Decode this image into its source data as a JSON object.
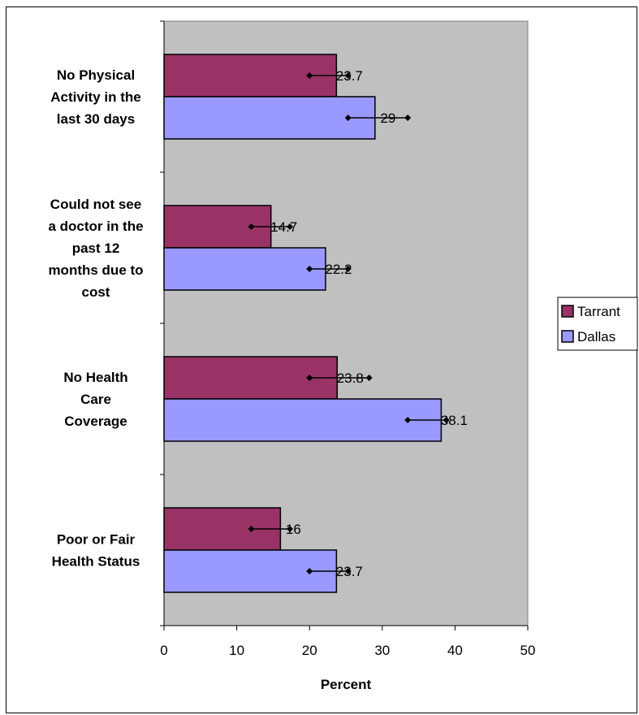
{
  "chart_data": {
    "type": "bar",
    "orientation": "horizontal",
    "categories": [
      [
        "No Physical",
        "Activity in the",
        "last 30 days"
      ],
      [
        "Could not see",
        "a doctor in the",
        "past 12",
        "months due to",
        "cost"
      ],
      [
        "No Health",
        "Care",
        "Coverage"
      ],
      [
        "Poor or Fair",
        "Health Status"
      ]
    ],
    "series": [
      {
        "name": "Tarrant",
        "color": "#993366",
        "values": [
          23.7,
          14.7,
          23.8,
          16
        ],
        "labels": [
          "23.7",
          "14.7",
          "23.8",
          "16"
        ],
        "error_low": [
          20.0,
          12.0,
          20.0,
          12.0
        ],
        "error_high": [
          25.3,
          17.3,
          28.2,
          17.3
        ]
      },
      {
        "name": "Dallas",
        "color": "#9999ff",
        "values": [
          29,
          22.2,
          38.1,
          23.7
        ],
        "labels": [
          "29",
          "22.2",
          "38.1",
          "23.7"
        ],
        "error_low": [
          25.3,
          20.0,
          33.5,
          20.0
        ],
        "error_high": [
          33.5,
          25.3,
          38.8,
          25.3
        ]
      }
    ],
    "xlabel": "Percent",
    "xlim": [
      0,
      50
    ],
    "xticks": [
      0,
      10,
      20,
      30,
      40,
      50
    ],
    "plot_background": "#c0c0c0",
    "legend": "right"
  }
}
